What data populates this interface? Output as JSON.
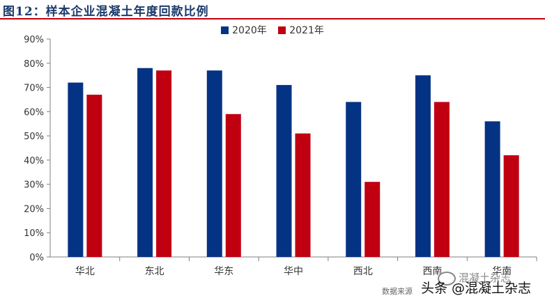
{
  "header": {
    "title": "图12：样本企业混凝土年度回款比例"
  },
  "chart_data": {
    "type": "bar",
    "title": "",
    "xlabel": "",
    "ylabel": "",
    "categories": [
      "华北",
      "东北",
      "华东",
      "华中",
      "西北",
      "西南",
      "华南"
    ],
    "series": [
      {
        "name": "2020年",
        "color": "#053383",
        "values": [
          72,
          78,
          77,
          71,
          64,
          75,
          56
        ]
      },
      {
        "name": "2021年",
        "color": "#c00010",
        "values": [
          67,
          77,
          59,
          51,
          31,
          64,
          42
        ]
      }
    ],
    "ylim": [
      0,
      90
    ],
    "yticks": [
      "0%",
      "10%",
      "20%",
      "30%",
      "40%",
      "50%",
      "60%",
      "70%",
      "80%",
      "90%"
    ],
    "grid": false,
    "legend_position": "top-center"
  },
  "footer": {
    "source": "数据来源",
    "watermark": "头条 @混凝土杂志",
    "watermark_top": "混凝土杂志"
  }
}
